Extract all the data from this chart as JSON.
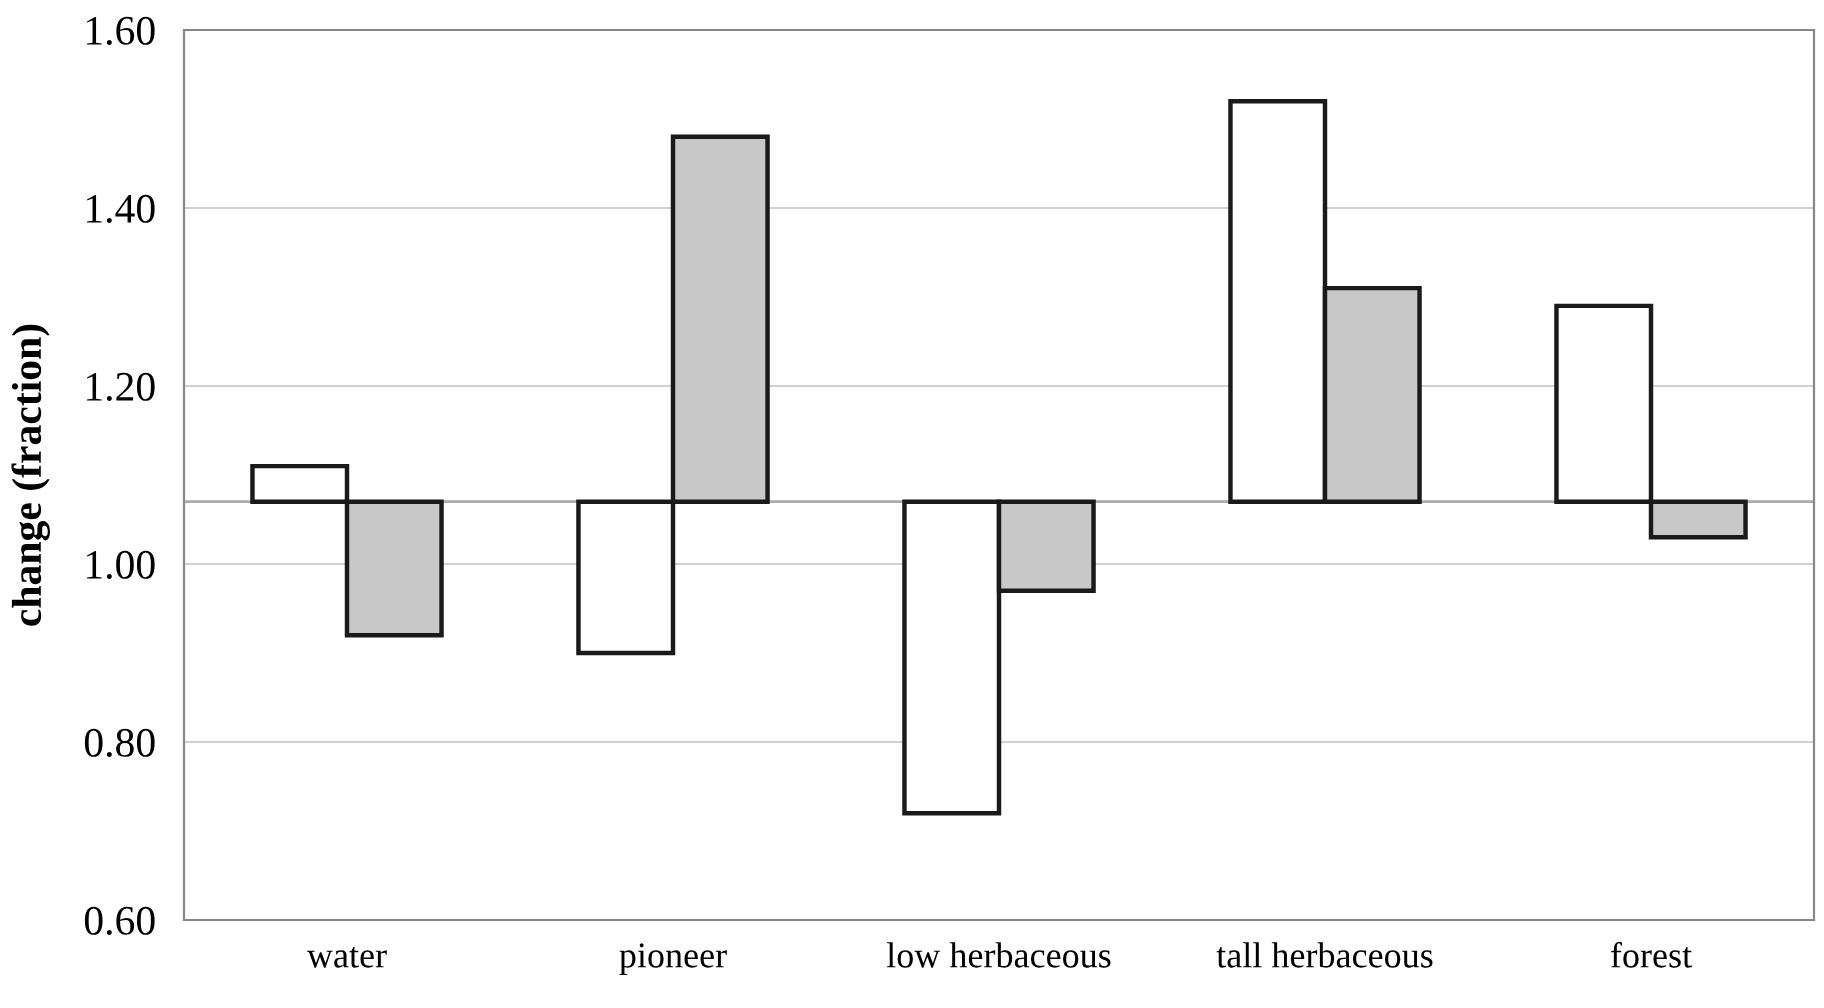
{
  "chart_data": {
    "type": "bar",
    "ylabel": "change (fraction)",
    "categories": [
      "water",
      "pioneer",
      "low herbaceous",
      "tall herbaceous",
      "forest"
    ],
    "series": [
      {
        "color": "#ffffff",
        "base": [
          1.07,
          1.07,
          1.07,
          1.07,
          1.07
        ],
        "values": [
          0.04,
          -0.17,
          -0.35,
          0.45,
          0.22
        ]
      },
      {
        "color": "#c8c8c8",
        "base": [
          1.07,
          1.07,
          1.07,
          1.07,
          1.07
        ],
        "values": [
          -0.15,
          0.41,
          -0.1,
          0.24,
          -0.04
        ]
      }
    ],
    "ref_lines": [
      {
        "axis": "y",
        "value": 1.07,
        "color": "#aaaaaa"
      }
    ],
    "ylim": [
      0.6,
      1.6
    ],
    "yticks": [
      {
        "value": 0.6,
        "label": "0.60"
      },
      {
        "value": 0.8,
        "label": "0.80"
      },
      {
        "value": 1.0,
        "label": "1.00"
      },
      {
        "value": 1.2,
        "label": "1.20"
      },
      {
        "value": 1.4,
        "label": "1.40"
      },
      {
        "value": 1.6,
        "label": "1.60"
      }
    ],
    "grid": "y"
  }
}
